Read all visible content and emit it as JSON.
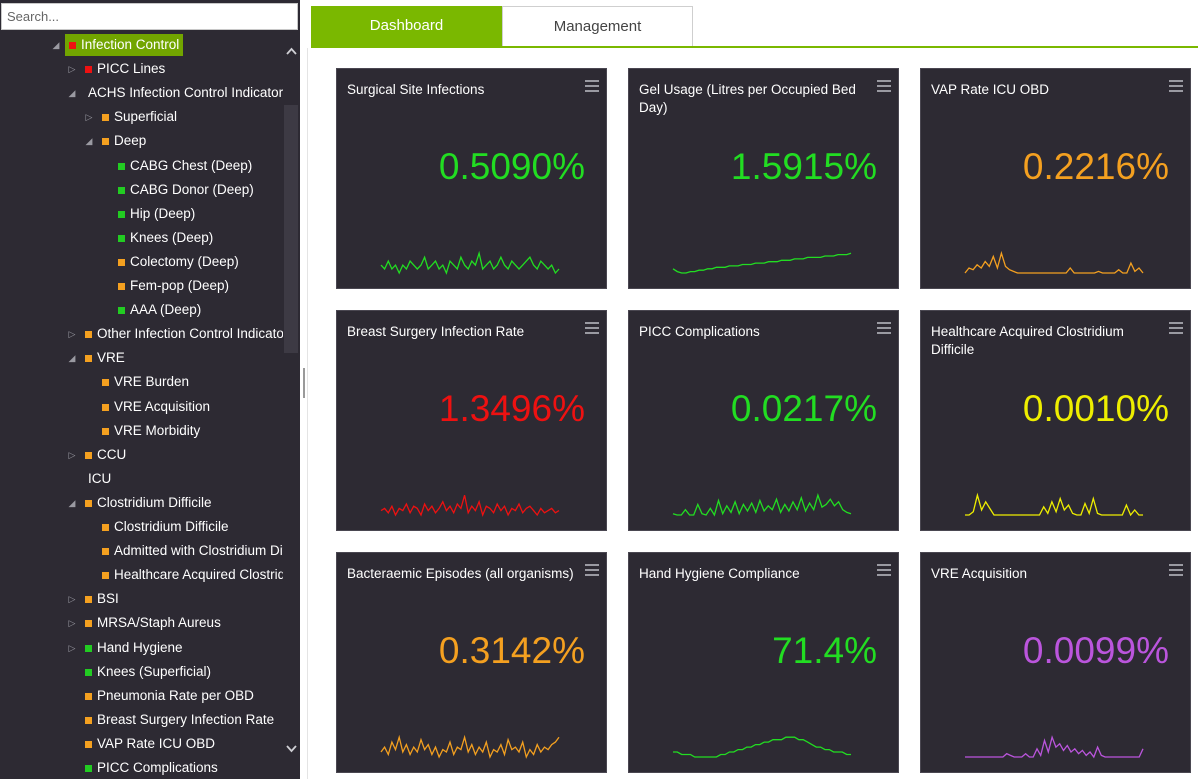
{
  "search": {
    "placeholder": "Search..."
  },
  "tree": [
    {
      "label": "Infection Control",
      "level": 0,
      "toggle": "expanded",
      "color": "red",
      "selected": true
    },
    {
      "label": "PICC Lines",
      "level": 1,
      "toggle": "collapsed",
      "color": "red"
    },
    {
      "label": "ACHS Infection Control Indicators",
      "level": 1,
      "toggle": "expanded",
      "color": ""
    },
    {
      "label": "Superficial",
      "level": 2,
      "toggle": "collapsed",
      "color": "orange"
    },
    {
      "label": "Deep",
      "level": 2,
      "toggle": "expanded",
      "color": "orange"
    },
    {
      "label": "CABG Chest (Deep)",
      "level": 3,
      "toggle": "",
      "color": "green"
    },
    {
      "label": "CABG Donor (Deep)",
      "level": 3,
      "toggle": "",
      "color": "green"
    },
    {
      "label": "Hip (Deep)",
      "level": 3,
      "toggle": "",
      "color": "green"
    },
    {
      "label": "Knees (Deep)",
      "level": 3,
      "toggle": "",
      "color": "green"
    },
    {
      "label": "Colectomy (Deep)",
      "level": 3,
      "toggle": "",
      "color": "orange"
    },
    {
      "label": "Fem-pop (Deep)",
      "level": 3,
      "toggle": "",
      "color": "orange"
    },
    {
      "label": "AAA (Deep)",
      "level": 3,
      "toggle": "",
      "color": "green"
    },
    {
      "label": "Other Infection Control Indicators",
      "level": 1,
      "toggle": "collapsed",
      "color": "orange"
    },
    {
      "label": "VRE",
      "level": 1,
      "toggle": "expanded",
      "color": "orange"
    },
    {
      "label": "VRE Burden",
      "level": 2,
      "toggle": "",
      "color": "orange"
    },
    {
      "label": "VRE Acquisition",
      "level": 2,
      "toggle": "",
      "color": "orange"
    },
    {
      "label": "VRE Morbidity",
      "level": 2,
      "toggle": "",
      "color": "orange"
    },
    {
      "label": "CCU",
      "level": 1,
      "toggle": "collapsed",
      "color": "orange"
    },
    {
      "label": "ICU",
      "level": 1,
      "toggle": "",
      "color": ""
    },
    {
      "label": "Clostridium Difficile",
      "level": 1,
      "toggle": "expanded",
      "color": "orange"
    },
    {
      "label": "Clostridium Difficile",
      "level": 2,
      "toggle": "",
      "color": "orange"
    },
    {
      "label": "Admitted with Clostridium Difficile",
      "level": 2,
      "toggle": "",
      "color": "orange"
    },
    {
      "label": "Healthcare Acquired Clostridium Difficile",
      "level": 2,
      "toggle": "",
      "color": "orange"
    },
    {
      "label": "BSI",
      "level": 1,
      "toggle": "collapsed",
      "color": "orange"
    },
    {
      "label": "MRSA/Staph Aureus",
      "level": 1,
      "toggle": "collapsed",
      "color": "orange"
    },
    {
      "label": "Hand Hygiene",
      "level": 1,
      "toggle": "collapsed",
      "color": "green"
    },
    {
      "label": "Knees (Superficial)",
      "level": 1,
      "toggle": "",
      "color": "green"
    },
    {
      "label": "Pneumonia Rate per OBD",
      "level": 1,
      "toggle": "",
      "color": "orange"
    },
    {
      "label": "Breast Surgery Infection Rate",
      "level": 1,
      "toggle": "",
      "color": "orange"
    },
    {
      "label": "VAP Rate ICU OBD",
      "level": 1,
      "toggle": "",
      "color": "orange"
    },
    {
      "label": "PICC Complications",
      "level": 1,
      "toggle": "",
      "color": "green"
    }
  ],
  "tabs": {
    "dashboard": "Dashboard",
    "management": "Management",
    "active": "dashboard"
  },
  "colors": {
    "green": "#22dd22",
    "orange": "#f4a020",
    "red": "#ee1111",
    "yellow": "#eeee00",
    "purple": "#bb55dd",
    "accent": "#7ab800"
  },
  "cards": [
    {
      "title": "Surgical Site Infections",
      "value": "0.5090%",
      "color": "green",
      "trend": [
        6,
        5,
        7,
        5,
        6,
        4,
        6,
        5,
        7,
        6,
        5,
        6,
        8,
        5,
        6,
        7,
        5,
        6,
        4,
        7,
        6,
        5,
        8,
        6,
        5,
        7,
        6,
        9,
        5,
        6,
        7,
        5,
        6,
        8,
        6,
        5,
        7,
        6,
        5,
        6,
        7,
        8,
        6,
        5,
        7,
        6,
        5,
        6,
        4,
        5
      ]
    },
    {
      "title": "Gel Usage (Litres per Occupied Bed Day)",
      "value": "1.5915%",
      "color": "green",
      "trend": [
        5,
        3,
        2,
        2,
        3,
        3,
        4,
        4,
        5,
        5,
        6,
        6,
        6,
        7,
        7,
        7,
        8,
        8,
        8,
        9,
        9,
        9,
        10,
        10,
        10,
        11,
        11,
        11,
        12,
        12,
        12,
        13,
        13,
        13,
        13,
        14,
        14,
        14,
        15,
        15,
        15,
        16
      ]
    },
    {
      "title": "VAP Rate ICU OBD",
      "value": "0.2216%",
      "color": "orange",
      "trend": [
        2,
        5,
        4,
        7,
        5,
        9,
        6,
        12,
        5,
        14,
        6,
        4,
        3,
        2,
        2,
        2,
        2,
        2,
        2,
        2,
        2,
        2,
        2,
        2,
        2,
        2,
        5,
        2,
        2,
        2,
        2,
        2,
        2,
        3,
        2,
        2,
        2,
        2,
        4,
        2,
        2,
        8,
        3,
        5,
        2
      ]
    },
    {
      "title": "Breast Surgery Infection Rate",
      "value": "1.3496%",
      "color": "red",
      "trend": [
        7,
        8,
        6,
        9,
        5,
        8,
        7,
        10,
        6,
        9,
        8,
        5,
        10,
        7,
        9,
        6,
        8,
        11,
        7,
        9,
        6,
        10,
        8,
        14,
        6,
        9,
        7,
        11,
        5,
        9,
        8,
        6,
        10,
        7,
        9,
        5,
        8,
        7,
        10,
        6,
        8,
        9,
        7,
        5,
        8,
        6,
        7,
        8,
        6,
        7
      ]
    },
    {
      "title": "PICC Complications",
      "value": "0.0217%",
      "color": "green",
      "trend": [
        3,
        2,
        2,
        6,
        2,
        2,
        10,
        3,
        2,
        7,
        2,
        13,
        3,
        9,
        4,
        12,
        3,
        10,
        5,
        11,
        4,
        13,
        5,
        9,
        6,
        14,
        4,
        10,
        5,
        12,
        6,
        15,
        5,
        11,
        6,
        17,
        8,
        10,
        14,
        9,
        12,
        6,
        4,
        3
      ]
    },
    {
      "title": "Healthcare Acquired Clostridium Difficile",
      "value": "0.0010%",
      "color": "yellow",
      "trend": [
        2,
        2,
        4,
        14,
        5,
        10,
        6,
        2,
        2,
        2,
        2,
        2,
        2,
        2,
        2,
        2,
        2,
        2,
        2,
        7,
        3,
        10,
        4,
        12,
        5,
        8,
        3,
        2,
        2,
        9,
        3,
        12,
        3,
        2,
        2,
        2,
        2,
        2,
        2,
        8,
        2,
        5,
        2,
        2
      ]
    },
    {
      "title": "Bacteraemic Episodes (all organisms)",
      "value": "0.3142%",
      "color": "orange",
      "trend": [
        8,
        10,
        7,
        12,
        9,
        14,
        8,
        11,
        7,
        10,
        8,
        13,
        9,
        11,
        7,
        10,
        6,
        9,
        8,
        12,
        7,
        10,
        9,
        14,
        8,
        11,
        7,
        10,
        8,
        12,
        6,
        9,
        8,
        11,
        7,
        13,
        9,
        10,
        8,
        12,
        6,
        9,
        7,
        11,
        8,
        10,
        9,
        11,
        12,
        14
      ]
    },
    {
      "title": "Hand Hygiene Compliance",
      "value": "71.4%",
      "color": "green",
      "trend": [
        5,
        5,
        4,
        4,
        4,
        3,
        3,
        3,
        3,
        3,
        3,
        4,
        4,
        5,
        5,
        6,
        6,
        7,
        7,
        8,
        8,
        9,
        9,
        10,
        10,
        10,
        11,
        11,
        11,
        10,
        10,
        9,
        8,
        7,
        7,
        6,
        6,
        5,
        5,
        5,
        4,
        4
      ]
    },
    {
      "title": "VRE Acquisition",
      "value": "0.0099%",
      "color": "purple",
      "trend": [
        2,
        2,
        2,
        2,
        2,
        2,
        2,
        2,
        2,
        2,
        2,
        4,
        3,
        2,
        2,
        2,
        4,
        2,
        2,
        7,
        3,
        12,
        5,
        14,
        8,
        10,
        6,
        9,
        5,
        7,
        4,
        6,
        3,
        5,
        2,
        8,
        3,
        2,
        2,
        2,
        2,
        2,
        2,
        2,
        2,
        2,
        2,
        7
      ]
    }
  ]
}
